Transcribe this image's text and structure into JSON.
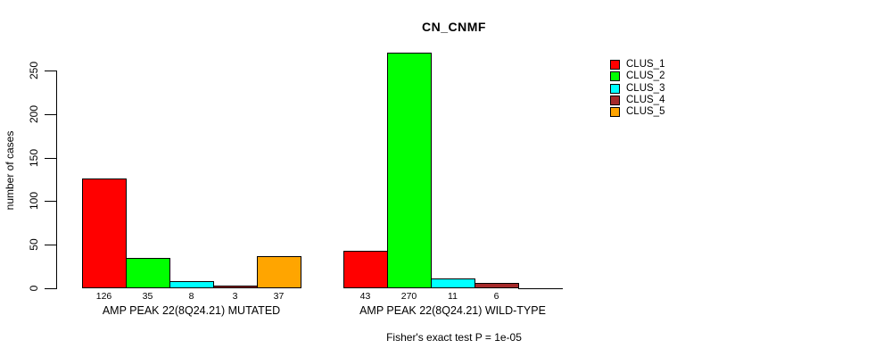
{
  "chart_data": {
    "type": "bar",
    "title": "CN_CNMF",
    "ylabel": "number of cases",
    "ylim": [
      0,
      250
    ],
    "yticks": [
      0,
      50,
      100,
      150,
      200,
      250
    ],
    "grid": false,
    "legend_position": "top-right",
    "categories": [
      "AMP PEAK 22(8Q24.21) MUTATED",
      "AMP PEAK 22(8Q24.21) WILD-TYPE"
    ],
    "series": [
      {
        "name": "CLUS_1",
        "color": "#FF0000",
        "values": [
          126,
          43
        ]
      },
      {
        "name": "CLUS_2",
        "color": "#00FF00",
        "values": [
          35,
          270
        ]
      },
      {
        "name": "CLUS_3",
        "color": "#00FFFF",
        "values": [
          8,
          11
        ]
      },
      {
        "name": "CLUS_4",
        "color": "#A52A2A",
        "values": [
          3,
          6
        ]
      },
      {
        "name": "CLUS_5",
        "color": "#FFA500",
        "values": [
          37,
          0
        ]
      }
    ],
    "bar_value_labels": {
      "shown": true,
      "hide_zero": true
    },
    "footnote": "Fisher's exact test P = 1e-05"
  }
}
